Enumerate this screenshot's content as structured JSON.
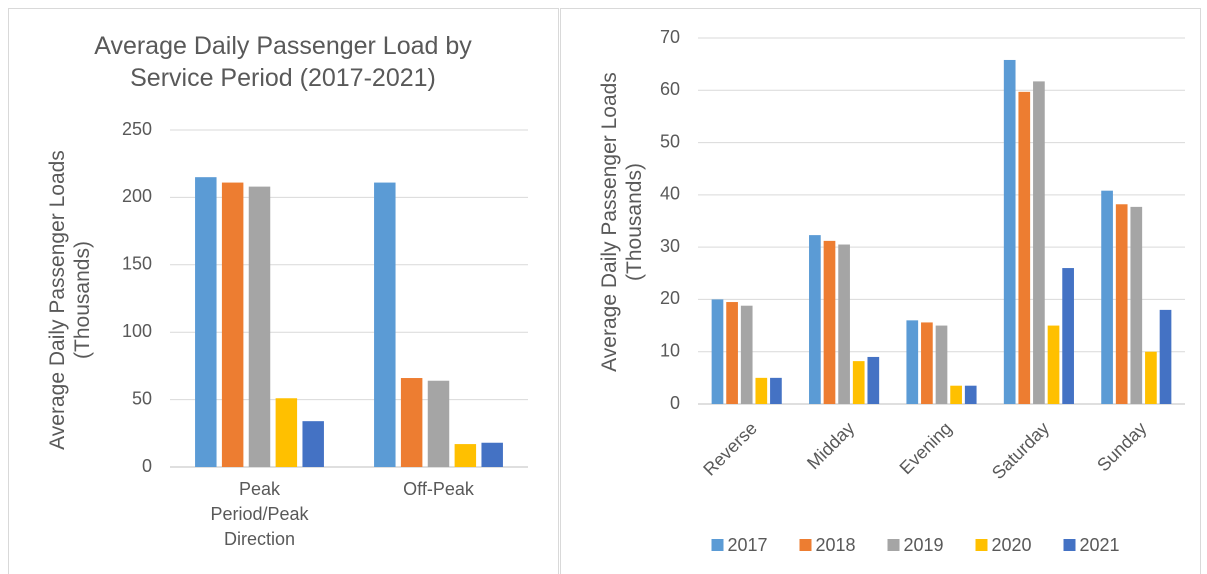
{
  "chart_data": [
    {
      "type": "bar",
      "title": "Average Daily Passenger Load by Service Period (2017-2021)",
      "y_label": "Average Daily Passenger Loads (Thousands)",
      "categories": [
        "Peak Period/Peak Direction",
        "Off-Peak"
      ],
      "series": [
        {
          "color": "#5b9bd5",
          "values": [
            215,
            211
          ]
        },
        {
          "color": "#ed7d31",
          "values": [
            211,
            66
          ]
        },
        {
          "color": "#a5a5a5",
          "values": [
            208,
            64
          ]
        },
        {
          "color": "#ffc000",
          "values": [
            51,
            17
          ]
        },
        {
          "color": "#4472c4",
          "values": [
            34,
            18
          ]
        }
      ],
      "ylim": [
        0,
        250
      ],
      "yticks": [
        0,
        50,
        100,
        150,
        200,
        250
      ],
      "grid": true
    },
    {
      "type": "bar",
      "y_label": "Average Daily Passenger Loads (Thousands)",
      "categories": [
        "Reverse",
        "Midday",
        "Evening",
        "Saturday",
        "Sunday"
      ],
      "series": [
        {
          "name": "2017",
          "color": "#5b9bd5",
          "values": [
            20,
            32.3,
            16,
            65.8,
            40.8
          ]
        },
        {
          "name": "2018",
          "color": "#ed7d31",
          "values": [
            19.5,
            31.2,
            15.6,
            59.7,
            38.2
          ]
        },
        {
          "name": "2019",
          "color": "#a5a5a5",
          "values": [
            18.8,
            30.5,
            15,
            61.7,
            37.7
          ]
        },
        {
          "name": "2020",
          "color": "#ffc000",
          "values": [
            5,
            8.2,
            3.5,
            15,
            10
          ]
        },
        {
          "name": "2021",
          "color": "#4472c4",
          "values": [
            5,
            9,
            3.5,
            26,
            18
          ]
        }
      ],
      "ylim": [
        0,
        70
      ],
      "yticks": [
        0,
        10,
        20,
        30,
        40,
        50,
        60,
        70
      ],
      "grid": true,
      "legend": "bottom"
    }
  ]
}
